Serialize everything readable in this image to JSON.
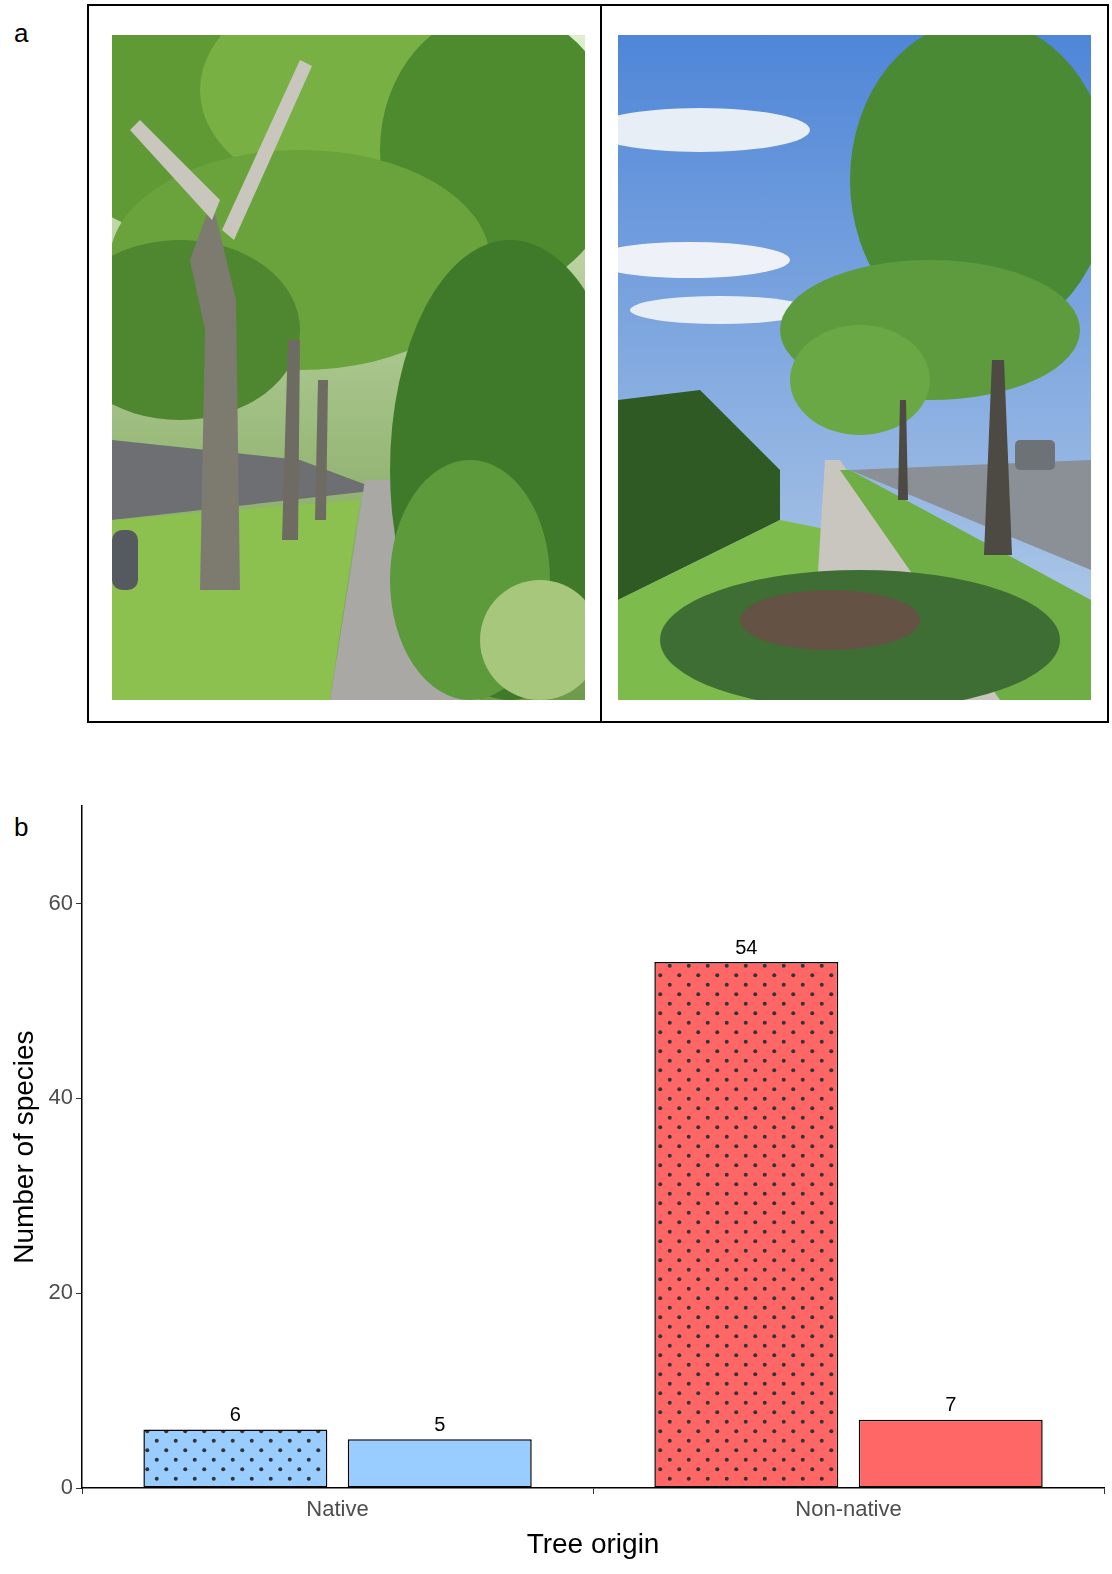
{
  "panel_labels": [
    "a",
    "b"
  ],
  "chart_data": {
    "type": "bar",
    "x_label": "Tree origin",
    "y_label": "Number of species",
    "categories": [
      "Native",
      "Non-native"
    ],
    "series": [
      {
        "colors": [
          "#99CCFF",
          "#FF6666"
        ],
        "marker": "dotted",
        "values": [
          6,
          54
        ]
      },
      {
        "colors": [
          "#99CCFF",
          "#FF6666"
        ],
        "values": [
          5,
          7
        ]
      }
    ],
    "ylim": [
      0,
      70
    ],
    "yticks": [
      0,
      20,
      40,
      60
    ],
    "grid": false,
    "data_labels": true
  }
}
